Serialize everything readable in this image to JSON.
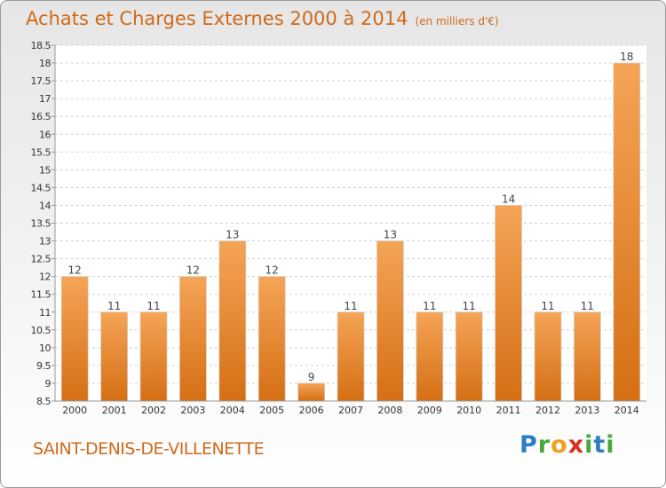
{
  "header": {
    "title": "Achats et Charges Externes 2000 à 2014",
    "subtitle": "(en milliers d'€)"
  },
  "footer": {
    "commune": "SAINT-DENIS-DE-VILLENETTE",
    "logo": "Proxiti"
  },
  "colors": {
    "bar_top": "#f5a457",
    "bar_bottom": "#d56f14",
    "title": "#cf6a1a"
  },
  "chart_data": {
    "type": "bar",
    "categories": [
      "2000",
      "2001",
      "2002",
      "2003",
      "2004",
      "2005",
      "2006",
      "2007",
      "2008",
      "2009",
      "2010",
      "2011",
      "2012",
      "2013",
      "2014"
    ],
    "values": [
      12,
      11,
      11,
      12,
      13,
      12,
      9,
      11,
      13,
      11,
      11,
      14,
      11,
      11,
      18
    ],
    "ylim": [
      8.5,
      18.5
    ],
    "yticks": [
      8.5,
      9,
      9.5,
      10,
      10.5,
      11,
      11.5,
      12,
      12.5,
      13,
      13.5,
      14,
      14.5,
      15,
      15.5,
      16,
      16.5,
      17,
      17.5,
      18,
      18.5
    ],
    "grid": true
  }
}
